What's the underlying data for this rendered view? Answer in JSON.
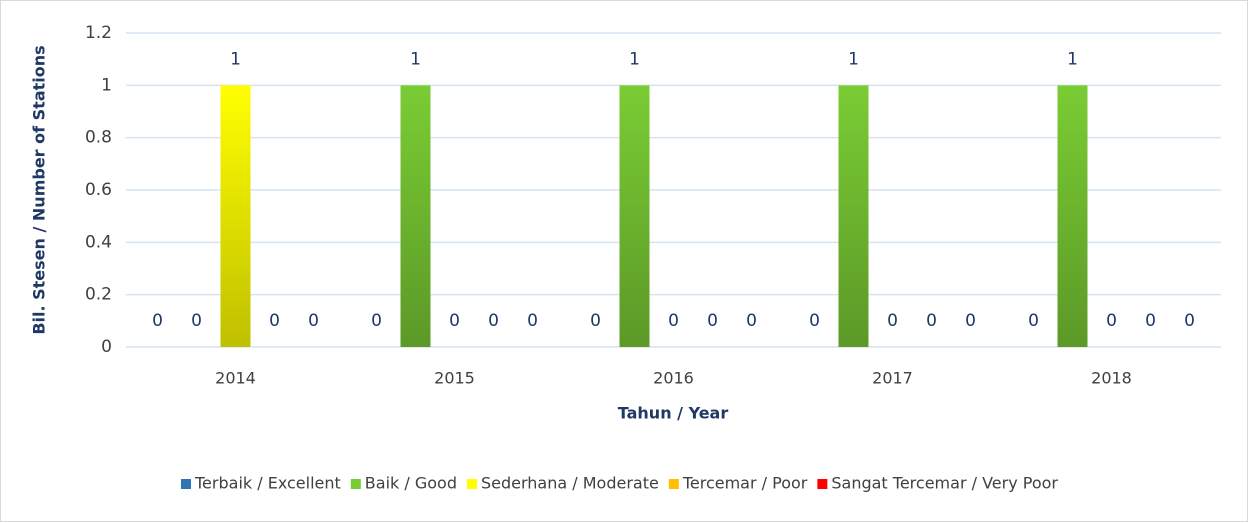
{
  "chart_data": {
    "type": "bar",
    "categories": [
      "2014",
      "2015",
      "2016",
      "2017",
      "2018"
    ],
    "series": [
      {
        "name": "Terbaik / Excellent",
        "color": "#2e75b6",
        "values": [
          0,
          0,
          0,
          0,
          0
        ]
      },
      {
        "name": "Baik / Good",
        "color": "#7acc34",
        "values": [
          0,
          1,
          1,
          1,
          1
        ]
      },
      {
        "name": "Sederhana / Moderate",
        "color": "#ffff00",
        "values": [
          1,
          0,
          0,
          0,
          0
        ]
      },
      {
        "name": "Tercemar / Poor",
        "color": "#ffc000",
        "values": [
          0,
          0,
          0,
          0,
          0
        ]
      },
      {
        "name": "Sangat Tercemar / Very Poor",
        "color": "#ff0000",
        "values": [
          0,
          0,
          0,
          0,
          0
        ]
      }
    ],
    "ylim": [
      0,
      1.2
    ],
    "yticks": [
      0,
      0.2,
      0.4,
      0.6,
      0.8,
      1,
      1.2
    ],
    "grid": true,
    "x_label": "Tahun / Year",
    "y_label": "Bil. Stesen /  Number of Stations",
    "legend": "bottom"
  }
}
